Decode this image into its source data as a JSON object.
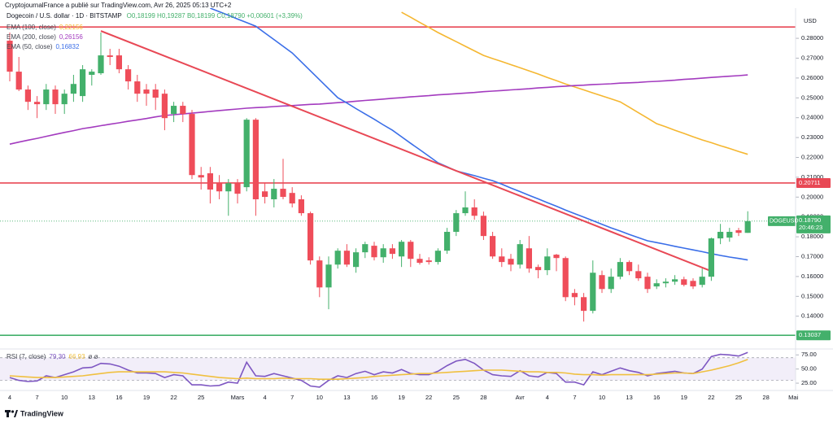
{
  "header": {
    "publisher": "CryptojournalFrance a publié sur TradingView.com, Avr 26, 2025 05:13 UTC+2"
  },
  "footer": {
    "brand": "TradingView"
  },
  "chart_data": [
    {
      "type": "candlestick",
      "title": "Dogecoin / U.S. dollar · 1D · BITSTAMP",
      "ohlc_legend": "O0,18199 H0,19287 B0,18199 C0,18790 +0,00601 (+3,39%)",
      "y_unit": "USD",
      "up_color": "#43b06b",
      "down_color": "#ef4d5a",
      "categories": [
        "4",
        null,
        null,
        "7",
        null,
        null,
        "10",
        null,
        null,
        "13",
        null,
        null,
        "16",
        null,
        null,
        "19",
        null,
        null,
        "22",
        null,
        null,
        "25",
        null,
        null,
        null,
        "Mars",
        null,
        null,
        "4",
        null,
        null,
        "7",
        null,
        null,
        "10",
        null,
        null,
        "13",
        null,
        null,
        "16",
        null,
        null,
        "19",
        null,
        null,
        "22",
        null,
        null,
        "25",
        null,
        null,
        "28",
        null,
        null,
        null,
        "Avr",
        null,
        null,
        "4",
        null,
        null,
        "7",
        null,
        null,
        "10",
        null,
        null,
        "13",
        null,
        null,
        "16",
        null,
        null,
        "19",
        null,
        null,
        "22",
        null,
        null,
        "25",
        null,
        null,
        "28",
        null,
        null,
        "Mai"
      ],
      "open": [
        0.2788,
        0.2632,
        0.2542,
        0.248,
        0.2468,
        0.2542,
        0.2468,
        0.2521,
        0.2509,
        0.2616,
        0.2624,
        0.2714,
        0.2714,
        0.2644,
        0.2583,
        0.2542,
        0.2542,
        0.2521,
        0.2419,
        0.246,
        0.2419,
        0.2111,
        0.212,
        0.207,
        0.2029,
        0.207,
        0.205,
        0.239,
        0.2029,
        0.1989,
        0.2042,
        0.2021,
        0.1989,
        0.1919,
        0.1681,
        0.1545,
        0.166,
        0.173,
        0.1648,
        0.1722,
        0.1755,
        0.1697,
        0.1742,
        0.1701,
        0.1775,
        0.1689,
        0.1681,
        0.1673,
        0.173,
        0.1825,
        0.1919,
        0.1948,
        0.1906,
        0.1804,
        0.1701,
        0.1689,
        0.166,
        0.1742,
        0.1648,
        0.1632,
        0.171,
        0.1693,
        0.1517,
        0.1496,
        0.1427,
        0.1607,
        0.1537,
        0.1599,
        0.1673,
        0.1627,
        0.1599,
        0.155,
        0.1566,
        0.1574,
        0.1586,
        0.1578,
        0.1558,
        0.1599,
        0.1792,
        0.1796,
        0.1833,
        0.18199,
        null,
        null,
        null,
        null,
        null
      ],
      "high": [
        0.2829,
        0.2706,
        0.2562,
        0.2509,
        0.257,
        0.2562,
        0.2542,
        0.2616,
        0.2665,
        0.2644,
        0.2829,
        0.2747,
        0.2747,
        0.2665,
        0.2616,
        0.257,
        0.257,
        0.2542,
        0.248,
        0.248,
        0.2439,
        0.2152,
        0.2152,
        0.2111,
        0.2091,
        0.2091,
        0.2398,
        0.2398,
        0.207,
        0.2091,
        0.2193,
        0.205,
        0.2009,
        0.1927,
        0.1701,
        0.1701,
        0.1742,
        0.1763,
        0.1742,
        0.1775,
        0.1775,
        0.1763,
        0.1763,
        0.1784,
        0.1784,
        0.1714,
        0.1697,
        0.1742,
        0.1845,
        0.1935,
        0.2029,
        0.1989,
        0.1927,
        0.1825,
        0.1742,
        0.1714,
        0.1784,
        0.1804,
        0.166,
        0.1742,
        0.1714,
        0.1701,
        0.1537,
        0.1517,
        0.1681,
        0.163,
        0.164,
        0.1693,
        0.1681,
        0.166,
        0.1619,
        0.1586,
        0.1591,
        0.1607,
        0.1599,
        0.1591,
        0.164,
        0.1796,
        0.1865,
        0.1845,
        0.1845,
        0.19287,
        null,
        null,
        null,
        null,
        null
      ],
      "low": [
        0.2583,
        0.2534,
        0.2439,
        0.2398,
        0.2439,
        0.2419,
        0.2419,
        0.248,
        0.248,
        0.2562,
        0.2616,
        0.2665,
        0.2624,
        0.2542,
        0.248,
        0.246,
        0.2439,
        0.2337,
        0.2378,
        0.2378,
        0.2091,
        0.2038,
        0.1968,
        0.1989,
        0.1906,
        0.1968,
        0.2029,
        0.1906,
        0.1968,
        0.1948,
        0.1989,
        0.1948,
        0.1906,
        0.166,
        0.1496,
        0.1435,
        0.164,
        0.1648,
        0.1619,
        0.1693,
        0.1681,
        0.1669,
        0.1689,
        0.1648,
        0.1648,
        0.166,
        0.166,
        0.166,
        0.1714,
        0.1804,
        0.1906,
        0.1886,
        0.1784,
        0.1689,
        0.1648,
        0.1627,
        0.164,
        0.1619,
        0.1591,
        0.1607,
        0.1627,
        0.1476,
        0.1455,
        0.1373,
        0.1414,
        0.1517,
        0.1517,
        0.1586,
        0.1607,
        0.1578,
        0.1517,
        0.1537,
        0.1545,
        0.1558,
        0.155,
        0.1537,
        0.1545,
        0.1578,
        0.1763,
        0.1775,
        0.1804,
        0.18199,
        null,
        null,
        null,
        null,
        null
      ],
      "close": [
        0.2632,
        0.2542,
        0.248,
        0.2468,
        0.2542,
        0.2468,
        0.2521,
        0.257,
        0.2644,
        0.2632,
        0.2714,
        0.2706,
        0.2644,
        0.2583,
        0.2521,
        0.2521,
        0.2501,
        0.2398,
        0.246,
        0.2419,
        0.2111,
        0.2099,
        0.2038,
        0.2029,
        0.207,
        0.2017,
        0.239,
        0.1989,
        0.2001,
        0.2042,
        0.2001,
        0.1968,
        0.1919,
        0.1681,
        0.1545,
        0.166,
        0.173,
        0.166,
        0.1722,
        0.1763,
        0.1697,
        0.1742,
        0.1714,
        0.1775,
        0.1689,
        0.1669,
        0.1673,
        0.173,
        0.1825,
        0.1919,
        0.1948,
        0.1906,
        0.1804,
        0.1701,
        0.1673,
        0.166,
        0.1763,
        0.164,
        0.1632,
        0.1701,
        0.1693,
        0.1496,
        0.1496,
        0.1427,
        0.1619,
        0.1537,
        0.1599,
        0.1673,
        0.1627,
        0.1591,
        0.1537,
        0.1566,
        0.1574,
        0.1586,
        0.1558,
        0.155,
        0.1599,
        0.1792,
        0.1825,
        0.1825,
        0.182,
        0.1879,
        null,
        null,
        null,
        null,
        null
      ],
      "series": [
        {
          "name": "EMA (100, close)",
          "value_label": "0,22156",
          "color": "#f5b731",
          "values": [
            null,
            null,
            null,
            null,
            null,
            null,
            null,
            null,
            null,
            null,
            null,
            null,
            null,
            null,
            null,
            null,
            null,
            null,
            null,
            null,
            null,
            null,
            null,
            null,
            null,
            null,
            null,
            null,
            null,
            null,
            null,
            null,
            null,
            null,
            null,
            null,
            null,
            null,
            null,
            null,
            null,
            null,
            null,
            0.2931,
            0.2906,
            0.288,
            0.2855,
            0.2829,
            0.2806,
            0.2783,
            0.276,
            0.2737,
            0.2714,
            0.2698,
            0.2683,
            0.2667,
            0.2652,
            0.2636,
            0.262,
            0.2603,
            0.2587,
            0.257,
            0.2555,
            0.254,
            0.2525,
            0.251,
            0.2495,
            0.248,
            0.2453,
            0.2425,
            0.2398,
            0.237,
            0.2354,
            0.2337,
            0.2321,
            0.2304,
            0.2288,
            0.2274,
            0.2259,
            0.2245,
            0.223,
            0.22156,
            null,
            null,
            null,
            null,
            null
          ]
        },
        {
          "name": "EMA (200, close)",
          "value_label": "0,26156",
          "color": "#a33bbf",
          "values": [
            0.2267,
            0.2277,
            0.2287,
            0.2296,
            0.2306,
            0.2316,
            0.2326,
            0.2335,
            0.2345,
            0.2352,
            0.236,
            0.2367,
            0.2374,
            0.2382,
            0.2389,
            0.2396,
            0.2404,
            0.2411,
            0.2415,
            0.2419,
            0.2423,
            0.2427,
            0.2432,
            0.2436,
            0.244,
            0.2444,
            0.2448,
            0.2451,
            0.2453,
            0.2456,
            0.2459,
            0.2461,
            0.2464,
            0.2467,
            0.2469,
            0.2472,
            0.2476,
            0.2479,
            0.2483,
            0.2487,
            0.249,
            0.2494,
            0.2498,
            0.2501,
            0.2505,
            0.2508,
            0.2511,
            0.2515,
            0.2518,
            0.2521,
            0.2524,
            0.2527,
            0.2531,
            0.2534,
            0.2537,
            0.254,
            0.2543,
            0.2546,
            0.255,
            0.2553,
            0.2556,
            0.2559,
            0.2562,
            0.2564,
            0.2567,
            0.2569,
            0.2571,
            0.2574,
            0.2576,
            0.2578,
            0.2581,
            0.2583,
            0.2586,
            0.2589,
            0.2593,
            0.2596,
            0.2599,
            0.2603,
            0.2606,
            0.2609,
            0.2612,
            0.26156,
            null,
            null,
            null,
            null,
            null
          ]
        },
        {
          "name": "EMA (50, close)",
          "value_label": "0,16832",
          "color": "#3a6ee8",
          "values": [
            null,
            null,
            null,
            null,
            null,
            null,
            null,
            null,
            null,
            null,
            null,
            null,
            null,
            null,
            null,
            null,
            null,
            null,
            null,
            null,
            null,
            null,
            0.2952,
            0.2934,
            0.2916,
            0.2897,
            0.2879,
            0.2861,
            0.2827,
            0.2794,
            0.276,
            0.2726,
            0.2681,
            0.2636,
            0.2591,
            0.2546,
            0.2501,
            0.2474,
            0.2446,
            0.2419,
            0.2392,
            0.2364,
            0.2337,
            0.2304,
            0.2271,
            0.2239,
            0.2206,
            0.2173,
            0.2153,
            0.2132,
            0.212,
            0.2108,
            0.2095,
            0.2083,
            0.2065,
            0.2046,
            0.2028,
            0.2009,
            0.1991,
            0.1972,
            0.1954,
            0.1935,
            0.1917,
            0.1899,
            0.1881,
            0.1863,
            0.1845,
            0.1829,
            0.1812,
            0.1796,
            0.178,
            0.1771,
            0.1762,
            0.1752,
            0.1743,
            0.1734,
            0.1725,
            0.1715,
            0.1706,
            0.1698,
            0.1691,
            0.16832,
            null,
            null,
            null,
            null,
            null
          ]
        }
      ],
      "trendlines": [
        {
          "color": "#e84855",
          "start": {
            "index": 10,
            "value": 0.2837
          },
          "end": {
            "index": 77,
            "value": 0.1627
          }
        }
      ],
      "horizontal_lines": [
        {
          "value": 0.2857,
          "color": "#e84855"
        },
        {
          "value": 0.20711,
          "label": "0.20711",
          "color": "#e84855"
        },
        {
          "value": 0.13037,
          "label": "0.13037",
          "color": "#43b06b"
        }
      ],
      "last_price": {
        "value": 0.1879,
        "label": "0.18790",
        "symbol": "DOGEUSD",
        "countdown": "20:46:23",
        "color": "#43b06b"
      },
      "ylim": [
        0.1239,
        0.2952
      ],
      "yticks": [
        {
          "value": 0.14,
          "label": "0.14000"
        },
        {
          "value": 0.15,
          "label": "0.15000"
        },
        {
          "value": 0.16,
          "label": "0.16000"
        },
        {
          "value": 0.17,
          "label": "0.17000"
        },
        {
          "value": 0.18,
          "label": "0.18000"
        },
        {
          "value": 0.19,
          "label": "0.19000"
        },
        {
          "value": 0.2,
          "label": "0.20000"
        },
        {
          "value": 0.21,
          "label": "0.21000"
        },
        {
          "value": 0.22,
          "label": "0.22000"
        },
        {
          "value": 0.23,
          "label": "0.23000"
        },
        {
          "value": 0.24,
          "label": "0.24000"
        },
        {
          "value": 0.25,
          "label": "0.25000"
        },
        {
          "value": 0.26,
          "label": "0.26000"
        },
        {
          "value": 0.27,
          "label": "0.27000"
        },
        {
          "value": 0.28,
          "label": "0.28000"
        }
      ],
      "grid": false
    },
    {
      "type": "line",
      "series": [
        {
          "name": "RSI (7, close)",
          "value_label": "79,30",
          "color": "#7e57c2",
          "values": [
            35,
            30,
            28,
            29,
            38,
            35,
            40,
            45,
            52,
            53,
            60,
            59,
            55,
            48,
            43,
            43,
            42,
            35,
            40,
            38,
            22,
            22,
            20,
            21,
            27,
            25,
            62,
            38,
            37,
            42,
            38,
            34,
            30,
            20,
            18,
            30,
            38,
            35,
            42,
            46,
            40,
            45,
            43,
            49,
            42,
            40,
            40,
            46,
            56,
            64,
            67,
            60,
            48,
            40,
            38,
            37,
            47,
            38,
            36,
            44,
            42,
            27,
            27,
            22,
            45,
            40,
            46,
            52,
            47,
            44,
            38,
            42,
            44,
            46,
            43,
            42,
            50,
            72,
            76,
            75,
            73,
            79.3,
            null,
            null,
            null,
            null,
            null
          ]
        },
        {
          "value_label": "66,93",
          "color": "#f0c040",
          "values": [
            38,
            37,
            36,
            35,
            35,
            35,
            36,
            37,
            38,
            40,
            42,
            44,
            45,
            45,
            45,
            45,
            45,
            45,
            44,
            43,
            41,
            39,
            37,
            35,
            34,
            33,
            34,
            33,
            33,
            33,
            34,
            33,
            33,
            33,
            32,
            32,
            32,
            33,
            34,
            35,
            37,
            38,
            39,
            40,
            41,
            42,
            42,
            43,
            44,
            45,
            46,
            47,
            48,
            48,
            48,
            47,
            46,
            45,
            45,
            44,
            44,
            43,
            41,
            40,
            40,
            39,
            40,
            40,
            40,
            40,
            40,
            41,
            42,
            43,
            43,
            42,
            45,
            48,
            52,
            56,
            61,
            66.93,
            null,
            null,
            null,
            null,
            null
          ]
        }
      ],
      "legend_suffix": "ø ø",
      "band": {
        "lower": 30,
        "upper": 70,
        "color": "#7e57c2"
      },
      "ylim": [
        15,
        84
      ],
      "yticks": [
        {
          "value": 25,
          "label": "25.00"
        },
        {
          "value": 50,
          "label": "50.00"
        },
        {
          "value": 75,
          "label": "75.00"
        }
      ],
      "grid": false
    }
  ]
}
